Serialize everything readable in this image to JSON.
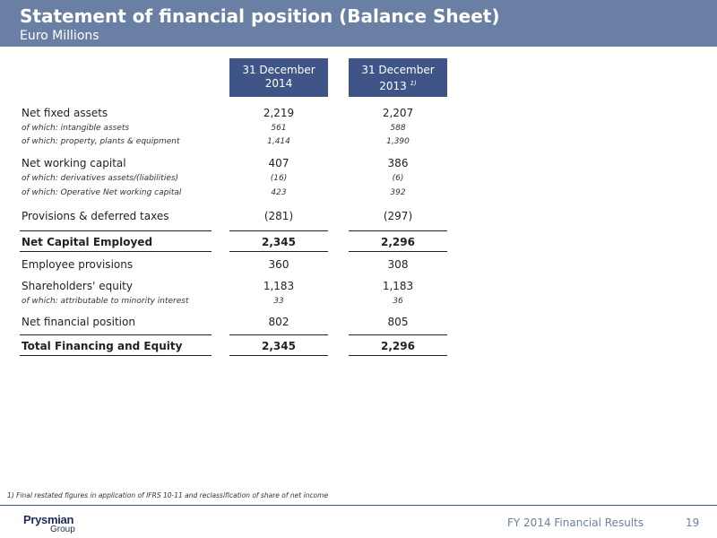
{
  "header": {
    "title": "Statement of financial position (Balance Sheet)",
    "subtitle": "Euro Millions"
  },
  "columns": [
    {
      "line1": "31 December",
      "line2": "2014",
      "note": ""
    },
    {
      "line1": "31 December",
      "line2": "2013",
      "note": "1)"
    }
  ],
  "rows": [
    {
      "label": "Net fixed assets",
      "v2014": "2,219",
      "v2013": "2,207"
    },
    {
      "label": "of which: intangible assets",
      "v2014": "561",
      "v2013": "588"
    },
    {
      "label": "of which: property, plants & equipment",
      "v2014": "1,414",
      "v2013": "1,390"
    },
    {
      "label": "Net working capital",
      "v2014": "407",
      "v2013": "386"
    },
    {
      "label": "of which: derivatives assets/(liabilities)",
      "v2014": "(16)",
      "v2013": "(6)"
    },
    {
      "label": "of which: Operative Net working capital",
      "v2014": "423",
      "v2013": "392"
    },
    {
      "label": "Provisions & deferred taxes",
      "v2014": "(281)",
      "v2013": "(297)"
    },
    {
      "label": "Net Capital Employed",
      "v2014": "2,345",
      "v2013": "2,296"
    },
    {
      "label": "Employee provisions",
      "v2014": "360",
      "v2013": "308"
    },
    {
      "label": "Shareholders' equity",
      "v2014": "1,183",
      "v2013": "1,183"
    },
    {
      "label": "of which: attributable to minority interest",
      "v2014": "33",
      "v2013": "36"
    },
    {
      "label": "Net financial position",
      "v2014": "802",
      "v2013": "805"
    },
    {
      "label": "Total Financing and Equity",
      "v2014": "2,345",
      "v2013": "2,296"
    }
  ],
  "footnote": "1) Final restated figures in application of IFRS 10-11 and reclassification of share of net income",
  "footer": {
    "logo_line1": "Prysmian",
    "logo_line2": "Group",
    "text": "FY 2014 Financial Results",
    "page": "19"
  },
  "colors": {
    "header_bg": "#6a7fa4",
    "column_header_bg": "#3f5587",
    "footer_text": "#6a7fa4"
  }
}
